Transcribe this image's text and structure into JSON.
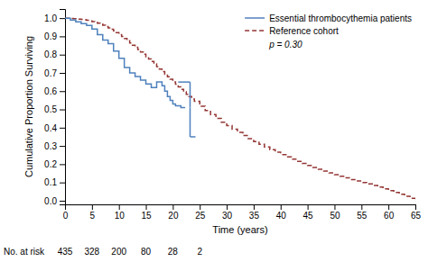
{
  "chart_data": {
    "type": "line",
    "xlabel": "Time (years)",
    "ylabel": "Cumulative Proportion Surviving",
    "xlim": [
      0,
      65
    ],
    "ylim": [
      -0.02,
      1.05
    ],
    "xticks": [
      0,
      5,
      10,
      15,
      20,
      25,
      30,
      35,
      40,
      45,
      50,
      55,
      60,
      65
    ],
    "yticks": [
      {
        "value": 0.0,
        "label": "0.0"
      },
      0.1,
      0.2,
      0.3,
      0.4,
      0.5,
      0.6,
      0.7,
      0.8,
      0.9,
      {
        "value": 1.0,
        "label": "1.0"
      }
    ],
    "grid": false,
    "legend": "upper right",
    "series": [
      {
        "name": "Essential thrombocythemia patients",
        "color": "#4F81BD",
        "line_style": "solid",
        "x": [
          0,
          1,
          2,
          3,
          4,
          5,
          6,
          7,
          8,
          9,
          10,
          11,
          12,
          13,
          14,
          15,
          16,
          17,
          17.5,
          18,
          18.5,
          19,
          19.5,
          20,
          20.5,
          21,
          21.5,
          22,
          22.3
        ],
        "values": [
          1.0,
          0.99,
          0.98,
          0.97,
          0.96,
          0.94,
          0.91,
          0.88,
          0.86,
          0.82,
          0.78,
          0.73,
          0.7,
          0.68,
          0.66,
          0.64,
          0.62,
          0.65,
          0.65,
          0.63,
          0.6,
          0.57,
          0.55,
          0.53,
          0.52,
          0.52,
          0.51,
          0.51,
          0.51
        ]
      },
      {
        "name": "Reference cohort",
        "color": "#943634",
        "line_style": "dashed",
        "x": [
          0,
          0.5,
          1,
          1.5,
          2,
          2.5,
          3,
          3.5,
          4,
          4.5,
          5,
          5.5,
          6,
          6.5,
          7,
          7.5,
          8,
          8.5,
          9,
          9.5,
          10,
          10.5,
          11,
          11.5,
          12,
          12.5,
          13,
          13.5,
          14,
          14.5,
          15,
          15.5,
          16,
          16.5,
          17,
          17.5,
          18,
          18.5,
          19,
          19.5,
          20,
          20.5,
          21,
          21.5,
          22,
          22.5,
          23,
          23.5,
          24,
          25,
          26,
          27,
          28,
          29,
          30,
          31,
          32,
          33,
          34,
          35,
          36,
          37,
          38,
          39,
          40,
          41,
          42,
          43,
          44,
          45,
          46,
          47,
          48,
          49,
          50,
          51,
          52,
          53,
          54,
          55,
          56,
          57,
          58,
          59,
          60,
          61,
          62,
          63,
          64,
          65
        ],
        "values": [
          1.0,
          1.0,
          0.998,
          0.997,
          0.996,
          0.995,
          0.993,
          0.991,
          0.988,
          0.985,
          0.981,
          0.977,
          0.972,
          0.967,
          0.961,
          0.954,
          0.947,
          0.939,
          0.93,
          0.92,
          0.91,
          0.899,
          0.888,
          0.876,
          0.864,
          0.852,
          0.84,
          0.828,
          0.815,
          0.802,
          0.789,
          0.776,
          0.763,
          0.749,
          0.735,
          0.721,
          0.707,
          0.693,
          0.679,
          0.665,
          0.651,
          0.638,
          0.624,
          0.61,
          0.597,
          0.583,
          0.57,
          0.557,
          0.544,
          0.518,
          0.494,
          0.472,
          0.451,
          0.43,
          0.411,
          0.392,
          0.374,
          0.357,
          0.34,
          0.324,
          0.309,
          0.294,
          0.28,
          0.266,
          0.253,
          0.24,
          0.228,
          0.216,
          0.204,
          0.193,
          0.182,
          0.172,
          0.162,
          0.152,
          0.143,
          0.134,
          0.125,
          0.116,
          0.108,
          0.1,
          0.092,
          0.083,
          0.075,
          0.065,
          0.055,
          0.045,
          0.035,
          0.024,
          0.013,
          0.005
        ]
      }
    ],
    "ci": {
      "x1": 21.0,
      "x2": 23.2,
      "upper": 0.65,
      "mid": 0.51,
      "lower": 0.35,
      "color": "#4F81BD"
    },
    "annotations": [
      "p = 0.30"
    ],
    "at_risk": {
      "label": "No. at risk",
      "x": [
        0,
        5,
        10,
        15,
        20,
        25
      ],
      "values": [
        435,
        328,
        200,
        80,
        28,
        2
      ]
    }
  }
}
